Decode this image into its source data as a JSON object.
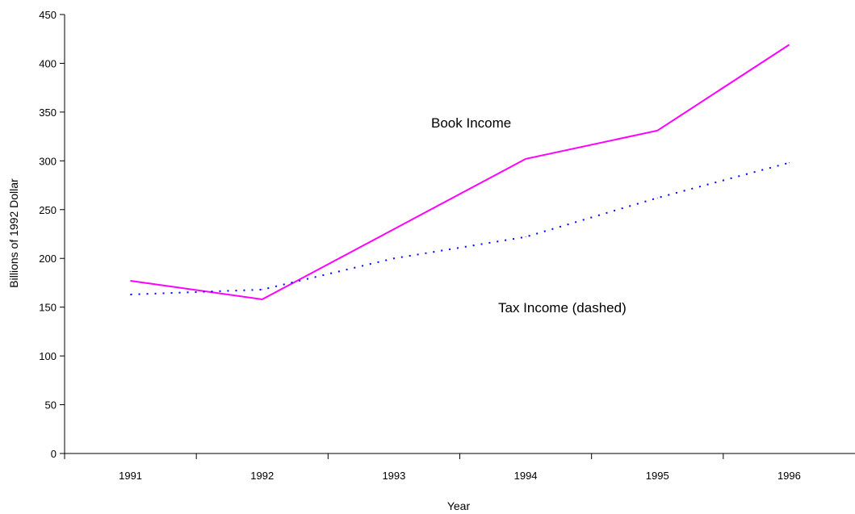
{
  "chart_data": {
    "type": "line",
    "xlabel": "Year",
    "ylabel": "Billions of 1992 Dollar",
    "categories": [
      "1991",
      "1992",
      "1993",
      "1994",
      "1995",
      "1996"
    ],
    "ylim": [
      0,
      450
    ],
    "yticks": [
      0,
      50,
      100,
      150,
      200,
      250,
      300,
      350,
      400,
      450
    ],
    "grid": false,
    "series": [
      {
        "name": "Book Income",
        "values": [
          177,
          158,
          230,
          302,
          331,
          419
        ],
        "color": "#ff00ff",
        "style": "solid"
      },
      {
        "name": "Tax Income (dashed)",
        "values": [
          163,
          168,
          200,
          222,
          262,
          298
        ],
        "color": "#0000ff",
        "style": "dotted"
      }
    ],
    "annotations": [
      "Book Income",
      "Tax Income (dashed)"
    ]
  }
}
